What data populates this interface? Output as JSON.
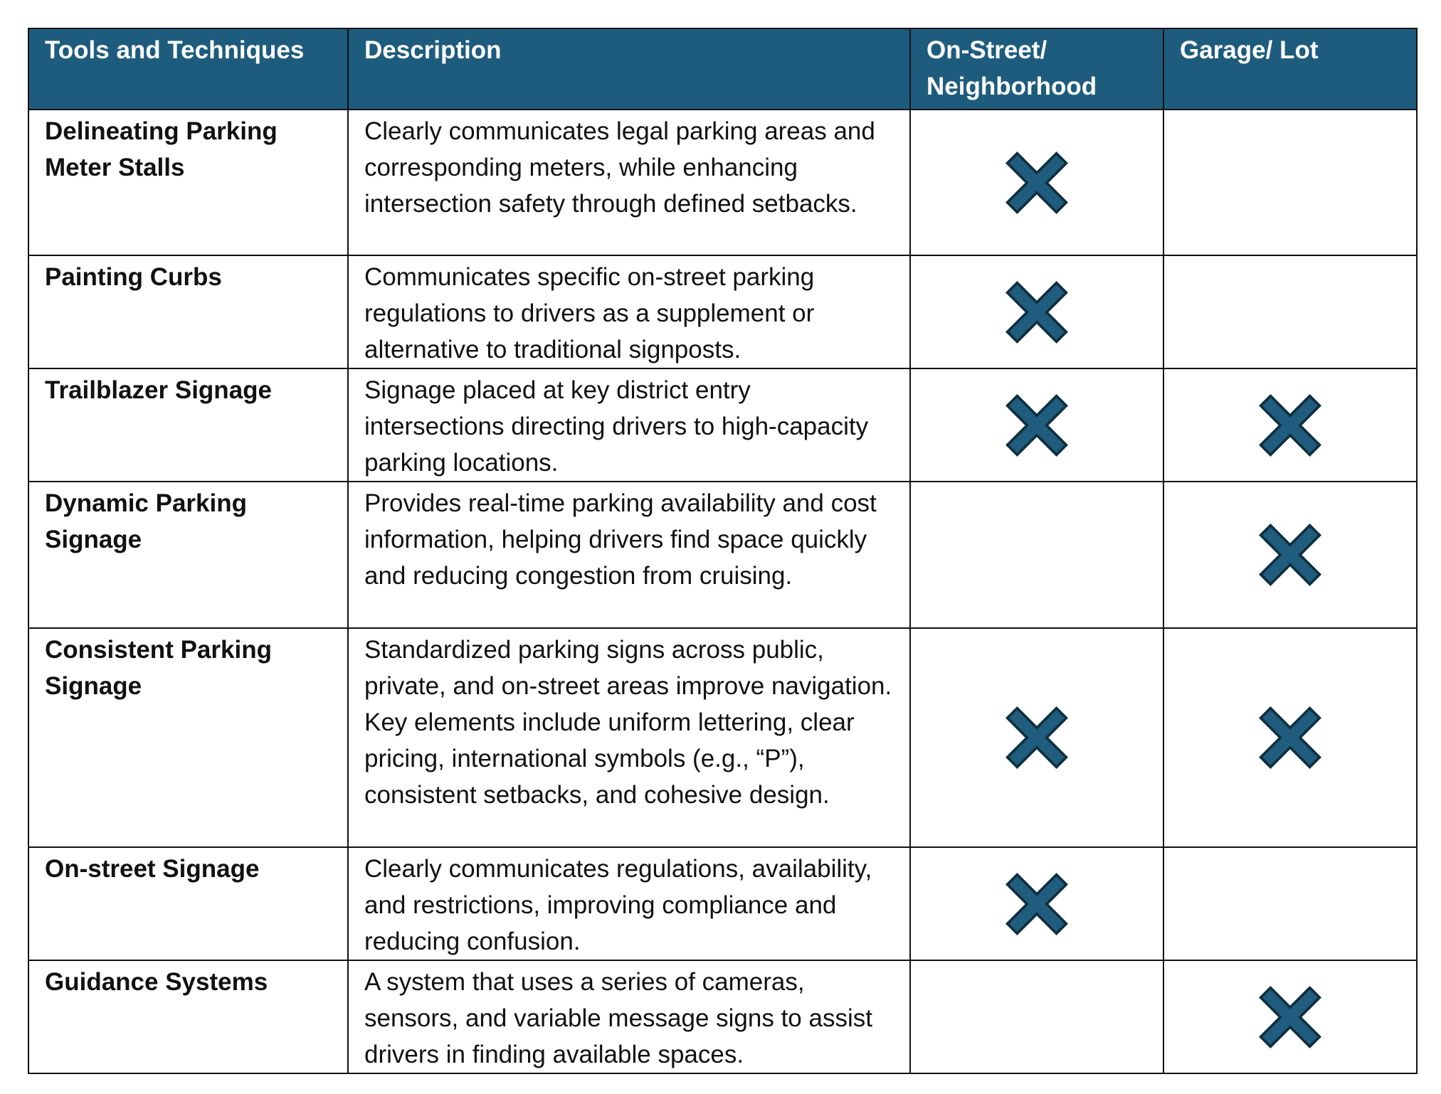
{
  "table": {
    "header": [
      "Tools and Techniques",
      "Description",
      "On-Street/ Neighborhood",
      "Garage/ Lot"
    ],
    "rows": [
      {
        "tool": "Delineating Parking Meter Stalls",
        "description": "Clearly communicates legal parking areas and corresponding meters, while enhancing intersection safety through defined setbacks.",
        "on_street": true,
        "garage": false
      },
      {
        "tool": "Painting Curbs",
        "description": "Communicates specific on-street parking regulations to drivers as a supplement or alternative to traditional signposts.",
        "on_street": true,
        "garage": false
      },
      {
        "tool": "Trailblazer Signage",
        "description": "Signage placed at key district entry intersections directing drivers to high-capacity parking locations.",
        "on_street": true,
        "garage": true
      },
      {
        "tool": "Dynamic Parking Signage",
        "description": "Provides real-time parking availability and cost information, helping drivers find space quickly and reducing congestion from cruising.",
        "on_street": false,
        "garage": true
      },
      {
        "tool": "Consistent Parking Signage",
        "description": "Standardized parking signs across public, private, and on-street areas improve navigation. Key elements include uniform lettering, clear pricing, international symbols (e.g., “P”), consistent setbacks, and cohesive design.",
        "on_street": true,
        "garage": true
      },
      {
        "tool": "On-street Signage",
        "description": "Clearly communicates regulations, availability, and restrictions, improving compliance and reducing confusion.",
        "on_street": true,
        "garage": false
      },
      {
        "tool": "Guidance Systems",
        "description": "A system that uses a series of cameras, sensors, and variable message signs to assist drivers in finding available spaces.",
        "on_street": false,
        "garage": true
      }
    ]
  }
}
